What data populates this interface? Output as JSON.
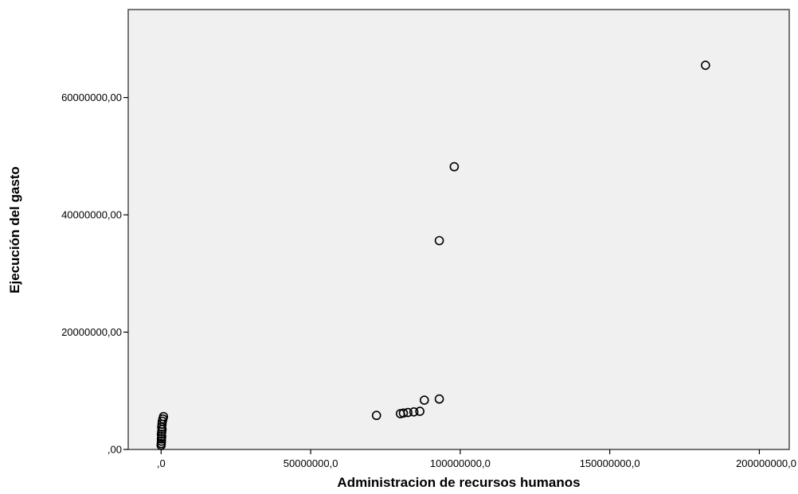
{
  "chart_data": {
    "type": "scatter",
    "title": "",
    "xlabel": "Administracion de recursos humanos",
    "ylabel": "Ejecución del gasto",
    "xlim": [
      -11000000,
      210000000
    ],
    "ylim": [
      0,
      75000000
    ],
    "x_ticks": [
      {
        "value": 0,
        "label": ",0"
      },
      {
        "value": 50000000,
        "label": "50000000,0"
      },
      {
        "value": 100000000,
        "label": "100000000,0"
      },
      {
        "value": 150000000,
        "label": "150000000,0"
      },
      {
        "value": 200000000,
        "label": "200000000,0"
      }
    ],
    "y_ticks": [
      {
        "value": 0,
        "label": ",00"
      },
      {
        "value": 20000000,
        "label": "20000000,00"
      },
      {
        "value": 40000000,
        "label": "40000000,00"
      },
      {
        "value": 60000000,
        "label": "60000000,00"
      }
    ],
    "grid": false,
    "points": [
      {
        "x": 182000000,
        "y": 65500000
      },
      {
        "x": 98000000,
        "y": 48200000
      },
      {
        "x": 93000000,
        "y": 35600000
      },
      {
        "x": 93000000,
        "y": 8600000
      },
      {
        "x": 88000000,
        "y": 8400000
      },
      {
        "x": 86500000,
        "y": 6500000
      },
      {
        "x": 84500000,
        "y": 6400000
      },
      {
        "x": 82500000,
        "y": 6300000
      },
      {
        "x": 81000000,
        "y": 6200000
      },
      {
        "x": 80000000,
        "y": 6100000
      },
      {
        "x": 72000000,
        "y": 5800000
      },
      {
        "x": 800000,
        "y": 5600000
      },
      {
        "x": 600000,
        "y": 5200000
      },
      {
        "x": 400000,
        "y": 4800000
      },
      {
        "x": 300000,
        "y": 4300000
      },
      {
        "x": 200000,
        "y": 3800000
      },
      {
        "x": 300000,
        "y": 3400000
      },
      {
        "x": 200000,
        "y": 3000000
      },
      {
        "x": 100000,
        "y": 2600000
      },
      {
        "x": 200000,
        "y": 2200000
      },
      {
        "x": 100000,
        "y": 1800000
      },
      {
        "x": 100000,
        "y": 1400000
      },
      {
        "x": 50000,
        "y": 1000000
      },
      {
        "x": 0,
        "y": 700000
      }
    ]
  }
}
